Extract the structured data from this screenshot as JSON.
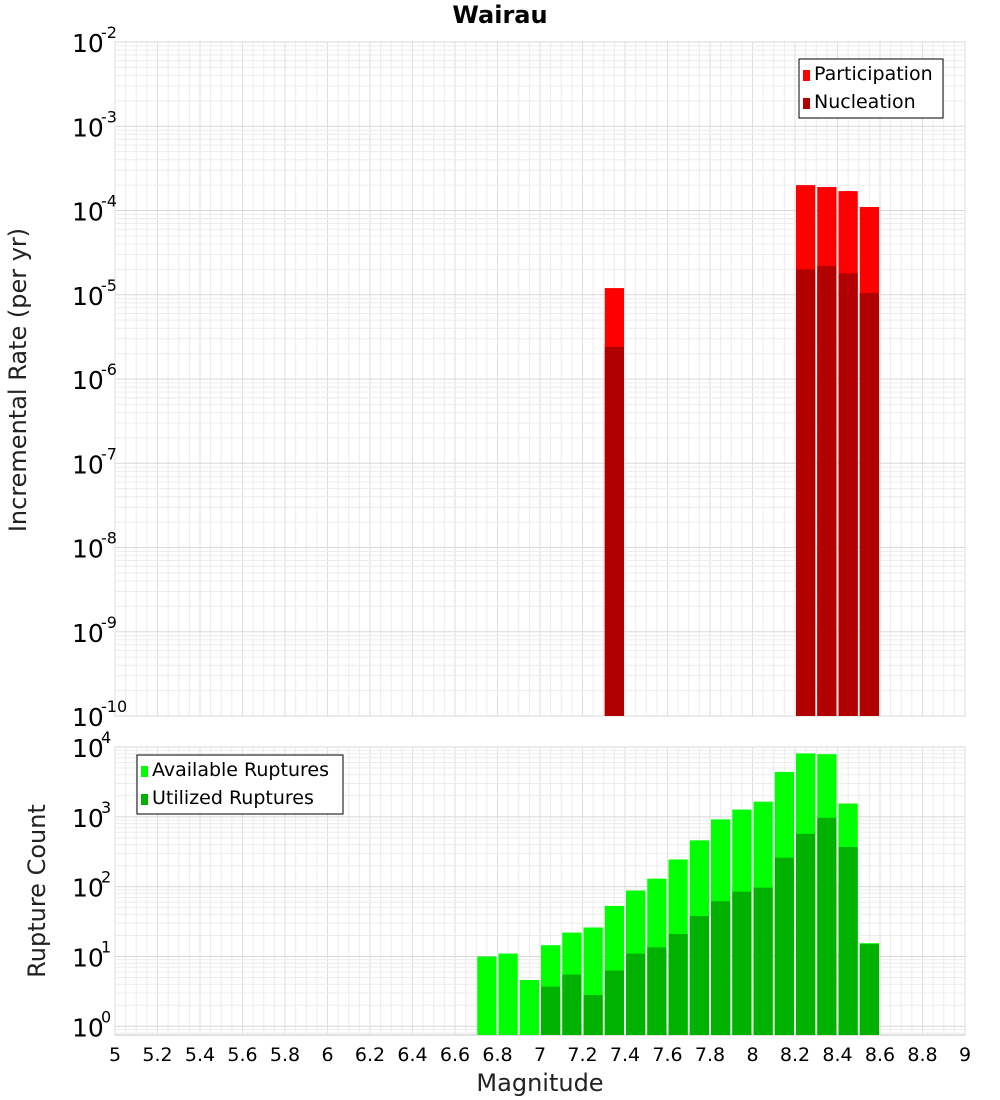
{
  "chart_data": [
    {
      "type": "bar",
      "scale": "log",
      "title": "Wairau",
      "ylabel": "Incremental Rate (per yr)",
      "xlabel": "",
      "xlim": [
        5,
        9
      ],
      "ylim": [
        1e-10,
        0.01
      ],
      "bin_width": 0.1,
      "overlay": true,
      "legend_position": "top-right",
      "y_tick_exponents": [
        "-10",
        "-9",
        "-8",
        "-7",
        "-6",
        "-5",
        "-4",
        "-3",
        "-2"
      ],
      "series": [
        {
          "name": "Participation",
          "color": "#ff0000",
          "x": [
            7.35,
            8.25,
            8.35,
            8.45,
            8.55
          ],
          "values": [
            1.2e-05,
            0.0002,
            0.00019,
            0.00017,
            0.00011
          ]
        },
        {
          "name": "Nucleation",
          "color": "#b20000",
          "x": [
            7.35,
            8.25,
            8.35,
            8.45,
            8.55
          ],
          "values": [
            2.4e-06,
            2e-05,
            2.2e-05,
            1.8e-05,
            1.05e-05
          ]
        }
      ]
    },
    {
      "type": "bar",
      "scale": "log",
      "title": "",
      "ylabel": "Rupture Count",
      "xlabel": "Magnitude",
      "xlim": [
        5,
        9
      ],
      "ylim": [
        0.75,
        10000
      ],
      "bin_width": 0.1,
      "overlay": true,
      "legend_position": "top-left",
      "x_ticks": [
        "5",
        "5.2",
        "5.4",
        "5.6",
        "5.8",
        "6",
        "6.2",
        "6.4",
        "6.6",
        "6.8",
        "7",
        "7.2",
        "7.4",
        "7.6",
        "7.8",
        "8",
        "8.2",
        "8.4",
        "8.6",
        "8.8",
        "9"
      ],
      "y_tick_exponents": [
        "0",
        "1",
        "2",
        "3",
        "4"
      ],
      "series": [
        {
          "name": "Available Ruptures",
          "color": "#00ff00",
          "x": [
            6.75,
            6.85,
            6.95,
            7.05,
            7.15,
            7.25,
            7.35,
            7.45,
            7.55,
            7.65,
            7.75,
            7.85,
            7.95,
            8.05,
            8.15,
            8.25,
            8.35,
            8.45,
            8.55
          ],
          "values": [
            10,
            11,
            4.6,
            14.5,
            22,
            26,
            53,
            88,
            130,
            245,
            460,
            920,
            1270,
            1650,
            4400,
            8100,
            7900,
            1550,
            15.5
          ]
        },
        {
          "name": "Utilized Ruptures",
          "color": "#00b200",
          "x": [
            6.75,
            6.85,
            6.95,
            7.05,
            7.15,
            7.25,
            7.35,
            7.45,
            7.55,
            7.65,
            7.75,
            7.85,
            7.95,
            8.05,
            8.15,
            8.25,
            8.35,
            8.45,
            8.55
          ],
          "values": [
            0,
            0,
            0,
            3.7,
            5.5,
            2.8,
            6.3,
            11,
            13.5,
            21,
            38,
            62,
            85,
            97,
            260,
            570,
            970,
            370,
            15
          ]
        }
      ]
    }
  ]
}
